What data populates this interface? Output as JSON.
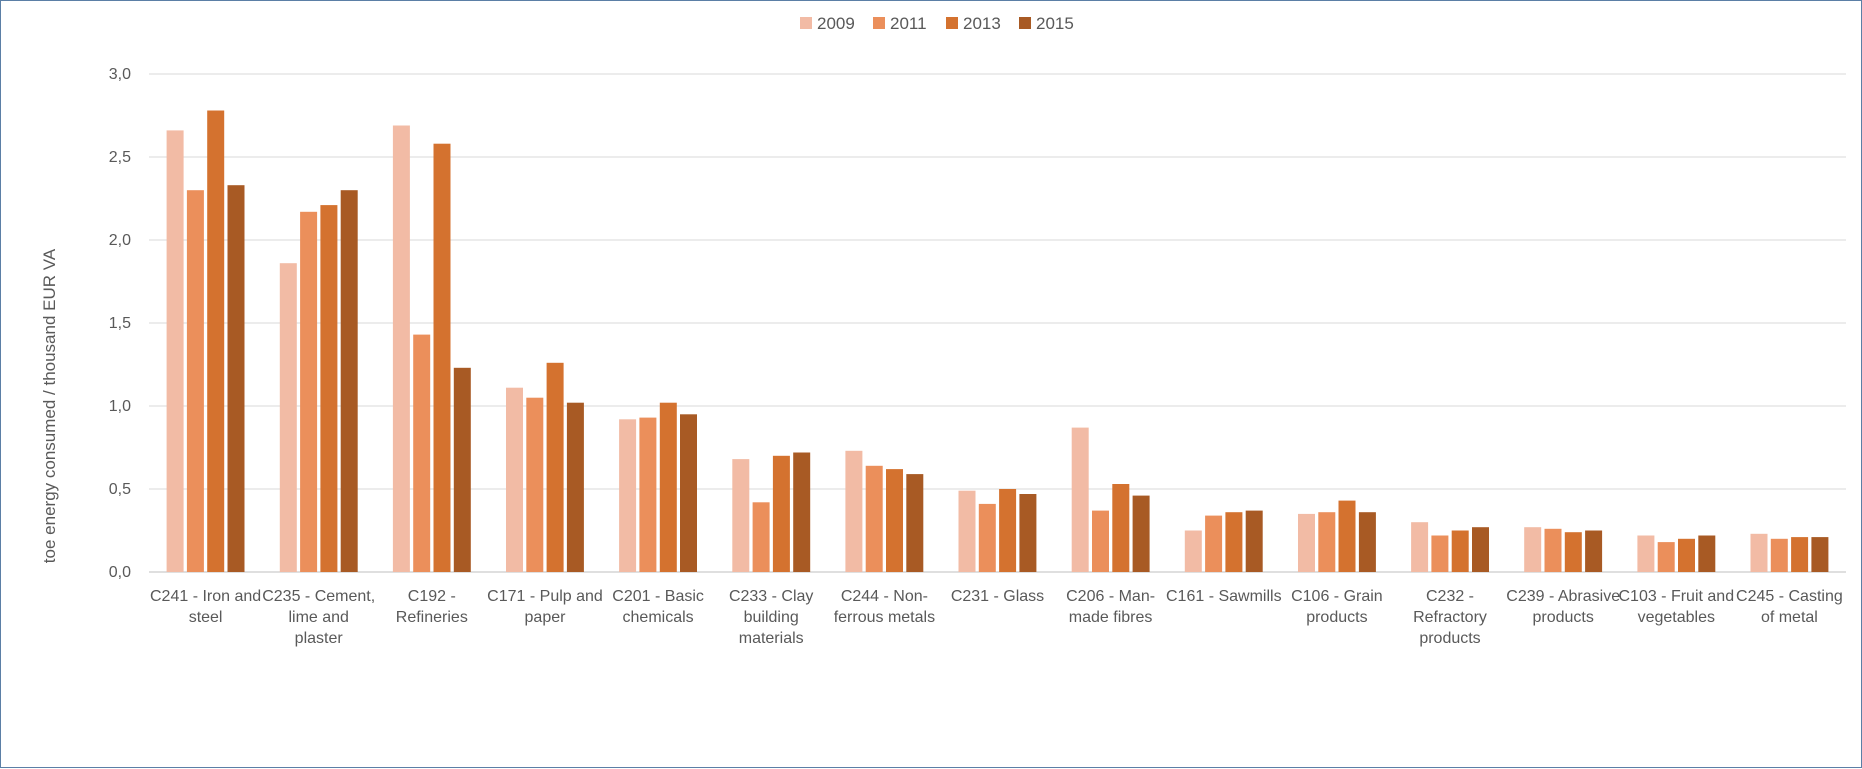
{
  "chart_data": {
    "type": "bar",
    "title": "",
    "xlabel": "",
    "ylabel": "toe energy consumed / thousand EUR VA",
    "ylim": [
      0,
      3
    ],
    "yticks": [
      "0,0",
      "0,5",
      "1,0",
      "1,5",
      "2,0",
      "2,5",
      "3,0"
    ],
    "ytick_values": [
      0,
      0.5,
      1.0,
      1.5,
      2.0,
      2.5,
      3.0
    ],
    "grid": true,
    "legend_position": "top-center",
    "categories": [
      [
        "C241 - Iron and",
        "steel"
      ],
      [
        "C235 - Cement,",
        "lime and",
        "plaster"
      ],
      [
        "C192 -",
        "Refineries"
      ],
      [
        "C171 - Pulp and",
        "paper"
      ],
      [
        "C201 - Basic",
        "chemicals"
      ],
      [
        "C233 - Clay",
        "building",
        "materials"
      ],
      [
        "C244 - Non-",
        "ferrous metals"
      ],
      [
        "C231 - Glass"
      ],
      [
        "C206 - Man-",
        "made fibres"
      ],
      [
        "C161 - Sawmills"
      ],
      [
        "C106 - Grain",
        "products"
      ],
      [
        "C232 -",
        "Refractory",
        "products"
      ],
      [
        "C239 - Abrasive",
        "products"
      ],
      [
        "C103 - Fruit and",
        "vegetables"
      ],
      [
        "C245 - Casting",
        "of metal"
      ]
    ],
    "series": [
      {
        "name": "2009",
        "color": "#f2bba5",
        "values": [
          2.66,
          1.86,
          2.69,
          1.11,
          0.92,
          0.68,
          0.73,
          0.49,
          0.87,
          0.25,
          0.35,
          0.3,
          0.27,
          0.22,
          0.23
        ]
      },
      {
        "name": "2011",
        "color": "#eb8f5b",
        "values": [
          2.3,
          2.17,
          1.43,
          1.05,
          0.93,
          0.42,
          0.64,
          0.41,
          0.37,
          0.34,
          0.36,
          0.22,
          0.26,
          0.18,
          0.2
        ]
      },
      {
        "name": "2013",
        "color": "#d4722f",
        "values": [
          2.78,
          2.21,
          2.58,
          1.26,
          1.02,
          0.7,
          0.62,
          0.5,
          0.53,
          0.36,
          0.43,
          0.25,
          0.24,
          0.2,
          0.21
        ]
      },
      {
        "name": "2015",
        "color": "#a85a24",
        "values": [
          2.33,
          2.3,
          1.23,
          1.02,
          0.95,
          0.72,
          0.59,
          0.47,
          0.46,
          0.37,
          0.36,
          0.27,
          0.25,
          0.22,
          0.21
        ]
      }
    ]
  }
}
